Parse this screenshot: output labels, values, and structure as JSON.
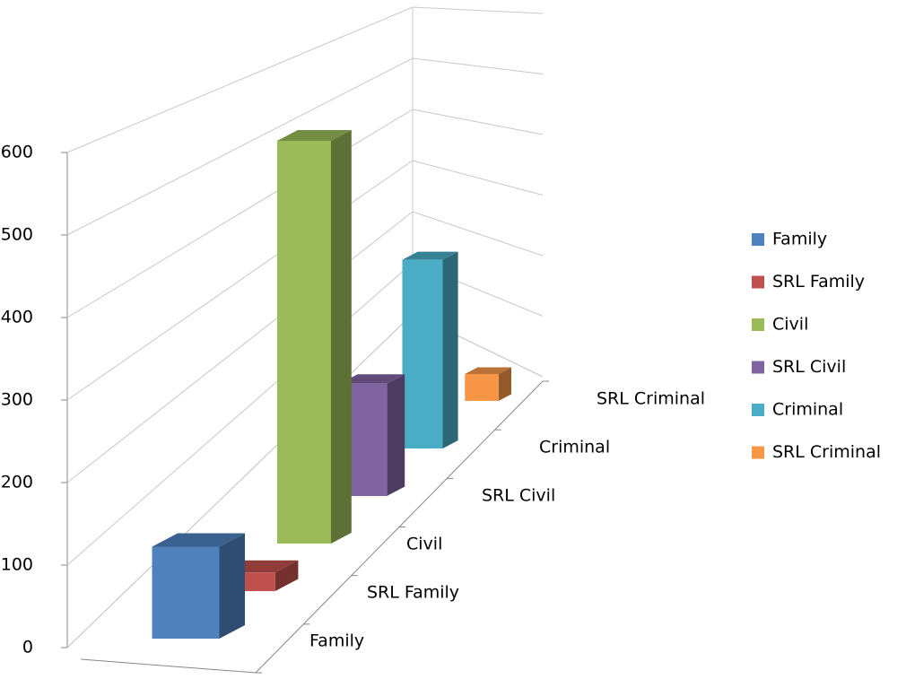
{
  "chart_data": {
    "type": "bar3d",
    "series": [
      {
        "name": "Family",
        "color": "#4f81bd",
        "values": [
          115
        ]
      },
      {
        "name": "SRL Family",
        "color": "#c0504d",
        "values": [
          25
        ]
      },
      {
        "name": "Civil",
        "color": "#9bbb59",
        "values": [
          580
        ]
      },
      {
        "name": "SRL Civil",
        "color": "#8064a2",
        "values": [
          175
        ]
      },
      {
        "name": "Criminal",
        "color": "#4bacc6",
        "values": [
          320
        ]
      },
      {
        "name": "SRL Criminal",
        "color": "#f79646",
        "values": [
          50
        ]
      }
    ],
    "ylim": [
      0,
      600
    ],
    "yticks": [
      0,
      100,
      200,
      300,
      400,
      500,
      600
    ],
    "grid": true,
    "legend": "right"
  }
}
